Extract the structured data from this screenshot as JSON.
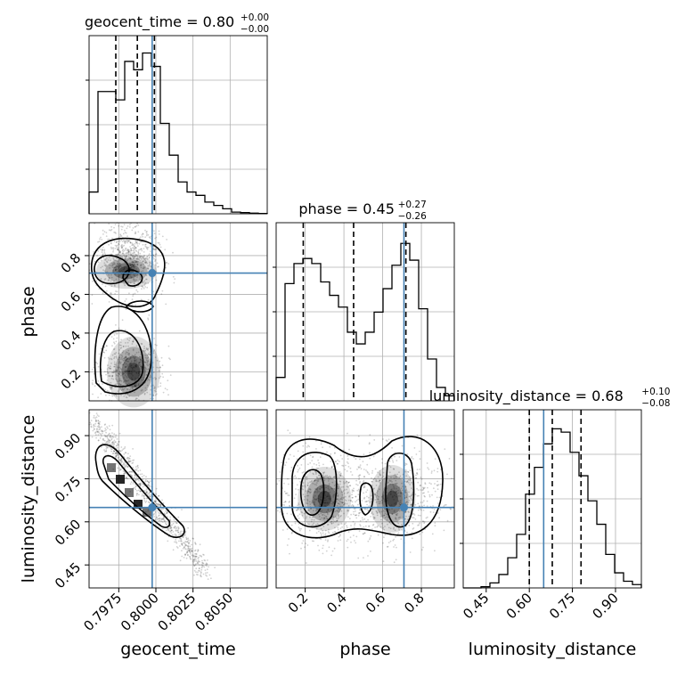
{
  "chart_data": {
    "type": "corner",
    "parameters": [
      "geocent_time",
      "phase",
      "luminosity_distance"
    ],
    "truths": {
      "geocent_time": 0.79975,
      "phase": 0.71,
      "luminosity_distance": 0.65
    },
    "titles": {
      "geocent_time": {
        "label": "geocent_time = 0.80",
        "plus": "+0.00",
        "minus": "−0.00"
      },
      "phase": {
        "label": "phase = 0.45",
        "plus": "+0.27",
        "minus": "−0.26"
      },
      "luminosity_distance": {
        "label": "luminosity_distance = 0.68",
        "plus": "+0.10",
        "minus": "−0.08"
      }
    },
    "quantiles": {
      "geocent_time": [
        0.7973,
        0.79875,
        0.7999
      ],
      "phase": [
        0.19,
        0.45,
        0.72
      ],
      "luminosity_distance": [
        0.6,
        0.68,
        0.78
      ]
    },
    "ranges": {
      "geocent_time": [
        0.7955,
        0.8075
      ],
      "phase": [
        0.05,
        0.97
      ],
      "luminosity_distance": [
        0.37,
        0.99
      ]
    },
    "ticks": {
      "geocent_time": {
        "values": [
          0.7975,
          0.8,
          0.8025,
          0.805
        ],
        "labels": [
          "0.7975",
          "0.8000",
          "0.8025",
          "0.8050"
        ]
      },
      "phase": {
        "values": [
          0.2,
          0.4,
          0.6,
          0.8
        ],
        "labels": [
          "0.2",
          "0.4",
          "0.6",
          "0.8"
        ]
      },
      "luminosity_distance": {
        "values": [
          0.45,
          0.6,
          0.75,
          0.9
        ],
        "labels": [
          "0.45",
          "0.60",
          "0.75",
          "0.90"
        ]
      }
    },
    "histograms": {
      "geocent_time": [
        0.13,
        0.73,
        0.73,
        0.68,
        0.91,
        0.86,
        0.96,
        0.88,
        0.54,
        0.35,
        0.19,
        0.13,
        0.11,
        0.07,
        0.05,
        0.03,
        0.01,
        0.007,
        0.004,
        0.002
      ],
      "phase": [
        0.14,
        0.7,
        0.82,
        0.85,
        0.82,
        0.71,
        0.63,
        0.56,
        0.41,
        0.34,
        0.41,
        0.53,
        0.67,
        0.81,
        0.94,
        0.84,
        0.55,
        0.25,
        0.08,
        0.03
      ],
      "luminosity_distance": [
        0.0,
        0.0,
        0.007,
        0.03,
        0.08,
        0.18,
        0.32,
        0.56,
        0.72,
        0.86,
        0.95,
        0.93,
        0.81,
        0.67,
        0.52,
        0.38,
        0.2,
        0.09,
        0.04,
        0.02
      ]
    },
    "grid": true
  }
}
